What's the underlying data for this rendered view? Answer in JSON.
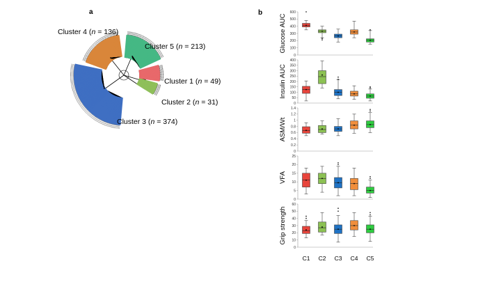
{
  "panels": {
    "a_label": "a",
    "b_label": "b"
  },
  "tree": {
    "clusters": [
      {
        "key": "c1",
        "prefix": "Cluster 1 (",
        "n_label": "n",
        "suffix": " = 49)",
        "color": "#e8696b"
      },
      {
        "key": "c2",
        "prefix": "Cluster 2 (",
        "n_label": "n",
        "suffix": " = 31)",
        "color": "#8fbf5a"
      },
      {
        "key": "c3",
        "prefix": "Cluster 3 (",
        "n_label": "n",
        "suffix": " = 374)",
        "color": "#3f6fc2"
      },
      {
        "key": "c4",
        "prefix": "Cluster 4 (",
        "n_label": "n",
        "suffix": " = 136)",
        "color": "#d9863a"
      },
      {
        "key": "c5",
        "prefix": "Cluster 5 (",
        "n_label": "n",
        "suffix": " = 213)",
        "color": "#45b884"
      }
    ]
  },
  "chart_data": [
    {
      "type": "box",
      "ylabel": "Glucose AUC",
      "ylim": [
        0,
        600
      ],
      "yticks": [
        "0",
        "100",
        "200",
        "300",
        "400",
        "500",
        "600"
      ],
      "categories": [
        "C1",
        "C2",
        "C3",
        "C4",
        "C5"
      ],
      "boxes": [
        {
          "min": 350,
          "q1": 390,
          "median": 410,
          "q3": 440,
          "max": 480,
          "mean": 412,
          "outliers": [
            600
          ]
        },
        {
          "min": 240,
          "q1": 310,
          "median": 330,
          "q3": 350,
          "max": 400,
          "mean": 330,
          "outliers": [
            210,
            230
          ]
        },
        {
          "min": 180,
          "q1": 240,
          "median": 265,
          "q3": 290,
          "max": 360,
          "mean": 265,
          "outliers": []
        },
        {
          "min": 240,
          "q1": 290,
          "median": 320,
          "q3": 350,
          "max": 470,
          "mean": 320,
          "outliers": []
        },
        {
          "min": 150,
          "q1": 180,
          "median": 205,
          "q3": 225,
          "max": 340,
          "mean": 205,
          "outliers": [
            350
          ]
        }
      ]
    },
    {
      "type": "box",
      "ylabel": "Insulin AUC",
      "ylim": [
        0,
        400
      ],
      "yticks": [
        "0",
        "50",
        "100",
        "150",
        "200",
        "250",
        "300",
        "350",
        "400"
      ],
      "categories": [
        "C1",
        "C2",
        "C3",
        "C4",
        "C5"
      ],
      "boxes": [
        {
          "min": 20,
          "q1": 90,
          "median": 125,
          "q3": 155,
          "max": 205,
          "mean": 125,
          "outliers": []
        },
        {
          "min": 140,
          "q1": 180,
          "median": 245,
          "q3": 300,
          "max": 390,
          "mean": 260,
          "outliers": []
        },
        {
          "min": 40,
          "q1": 70,
          "median": 100,
          "q3": 125,
          "max": 215,
          "mean": 100,
          "outliers": [
            220,
            240
          ]
        },
        {
          "min": 35,
          "q1": 65,
          "median": 85,
          "q3": 110,
          "max": 160,
          "mean": 85,
          "outliers": []
        },
        {
          "min": 20,
          "q1": 45,
          "median": 65,
          "q3": 85,
          "max": 130,
          "mean": 65,
          "outliers": [
            140,
            150
          ]
        }
      ]
    },
    {
      "type": "box",
      "ylabel": "ASM/Wt",
      "ylim": [
        0,
        1.4
      ],
      "yticks": [
        "0",
        "0.2",
        "0.4",
        "0.6",
        "0.8",
        "1",
        "1.2",
        "1.4"
      ],
      "categories": [
        "C1",
        "C2",
        "C3",
        "C4",
        "C5"
      ],
      "boxes": [
        {
          "min": 0.5,
          "q1": 0.58,
          "median": 0.67,
          "q3": 0.79,
          "max": 0.92,
          "mean": 0.67,
          "outliers": []
        },
        {
          "min": 0.55,
          "q1": 0.6,
          "median": 0.7,
          "q3": 0.83,
          "max": 0.98,
          "mean": 0.72,
          "outliers": []
        },
        {
          "min": 0.5,
          "q1": 0.64,
          "median": 0.72,
          "q3": 0.8,
          "max": 1.05,
          "mean": 0.72,
          "outliers": []
        },
        {
          "min": 0.58,
          "q1": 0.72,
          "median": 0.84,
          "q3": 0.98,
          "max": 1.2,
          "mean": 0.84,
          "outliers": []
        },
        {
          "min": 0.6,
          "q1": 0.76,
          "median": 0.86,
          "q3": 0.98,
          "max": 1.25,
          "mean": 0.86,
          "outliers": [
            1.3,
            1.35
          ]
        }
      ]
    },
    {
      "type": "box",
      "ylabel": "VFA",
      "ylim": [
        0,
        25
      ],
      "yticks": [
        "0",
        "5",
        "10",
        "15",
        "20",
        "25"
      ],
      "categories": [
        "C1",
        "C2",
        "C3",
        "C4",
        "C5"
      ],
      "boxes": [
        {
          "min": 3,
          "q1": 7,
          "median": 11,
          "q3": 15,
          "max": 18,
          "mean": 11,
          "outliers": []
        },
        {
          "min": 4,
          "q1": 9,
          "median": 12,
          "q3": 15,
          "max": 19,
          "mean": 12,
          "outliers": []
        },
        {
          "min": 2,
          "q1": 6.5,
          "median": 9.5,
          "q3": 12.5,
          "max": 19,
          "mean": 9.5,
          "outliers": [
            20,
            21
          ]
        },
        {
          "min": 2,
          "q1": 5.5,
          "median": 9,
          "q3": 12,
          "max": 18,
          "mean": 9,
          "outliers": []
        },
        {
          "min": 1,
          "q1": 3.5,
          "median": 5,
          "q3": 7,
          "max": 11,
          "mean": 5,
          "outliers": [
            12,
            13
          ]
        }
      ]
    },
    {
      "type": "box",
      "ylabel": "Grip strength",
      "ylim": [
        0,
        60
      ],
      "yticks": [
        "0",
        "10",
        "20",
        "30",
        "40",
        "50",
        "60"
      ],
      "categories": [
        "C1",
        "C2",
        "C3",
        "C4",
        "C5"
      ],
      "boxes": [
        {
          "min": 13,
          "q1": 19,
          "median": 23,
          "q3": 29,
          "max": 37,
          "mean": 24,
          "outliers": [
            40,
            43
          ]
        },
        {
          "min": 17,
          "q1": 21,
          "median": 27,
          "q3": 35,
          "max": 48,
          "mean": 28,
          "outliers": []
        },
        {
          "min": 7,
          "q1": 19,
          "median": 25,
          "q3": 31,
          "max": 44,
          "mean": 25,
          "outliers": [
            50,
            54
          ]
        },
        {
          "min": 15,
          "q1": 24,
          "median": 30,
          "q3": 37,
          "max": 48,
          "mean": 30,
          "outliers": []
        },
        {
          "min": 8,
          "q1": 20,
          "median": 25,
          "q3": 31,
          "max": 43,
          "mean": 25,
          "outliers": [
            45,
            48
          ]
        }
      ]
    }
  ],
  "box_colors": [
    "#e8453c",
    "#8cc153",
    "#1f72c4",
    "#f08e3c",
    "#2ecc40"
  ],
  "box_stroke": "#444444"
}
